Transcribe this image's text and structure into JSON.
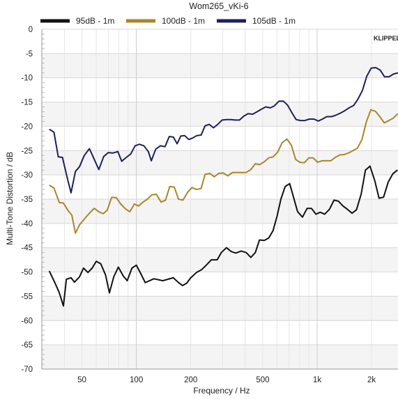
{
  "chart_data": {
    "type": "line",
    "title": "Wom265_vKi-6",
    "xlabel": "Frequency / Hz",
    "ylabel": "Multi-Tone Distortion / dB",
    "x_scale": "log",
    "xlim": [
      30,
      2800
    ],
    "ylim": [
      -70,
      0
    ],
    "grid": true,
    "legend_position": "top",
    "x_ticks": [
      {
        "value": 50,
        "label": "50"
      },
      {
        "value": 100,
        "label": "100"
      },
      {
        "value": 200,
        "label": "200"
      },
      {
        "value": 500,
        "label": "500"
      },
      {
        "value": 1000,
        "label": "1k"
      },
      {
        "value": 2000,
        "label": "2k"
      }
    ],
    "y_ticks": [
      0,
      -5,
      -10,
      -15,
      -20,
      -25,
      -30,
      -35,
      -40,
      -45,
      -50,
      -55,
      -60,
      -65,
      -70
    ],
    "series": [
      {
        "name": "95dB - 1m",
        "color": "#111111",
        "points": [
          [
            33,
            -49.8
          ],
          [
            35.5,
            -52.3
          ],
          [
            37.5,
            -54.3
          ],
          [
            39.5,
            -57
          ],
          [
            41,
            -51.5
          ],
          [
            43.5,
            -51.2
          ],
          [
            45.5,
            -52.1
          ],
          [
            48.5,
            -51
          ],
          [
            51,
            -49.2
          ],
          [
            54,
            -50.1
          ],
          [
            57,
            -49.2
          ],
          [
            60,
            -47.8
          ],
          [
            63.5,
            -48.3
          ],
          [
            67.5,
            -50.6
          ],
          [
            71,
            -54.3
          ],
          [
            75,
            -51
          ],
          [
            79.5,
            -49
          ],
          [
            84.5,
            -50.8
          ],
          [
            89,
            -51.8
          ],
          [
            94.5,
            -49.2
          ],
          [
            100,
            -48.6
          ],
          [
            106,
            -50.4
          ],
          [
            112,
            -52.2
          ],
          [
            125,
            -51.4
          ],
          [
            140,
            -51.8
          ],
          [
            160,
            -51.2
          ],
          [
            170,
            -52.1
          ],
          [
            180,
            -52.8
          ],
          [
            190,
            -52.3
          ],
          [
            200,
            -51.2
          ],
          [
            215,
            -50.1
          ],
          [
            230,
            -49.5
          ],
          [
            245,
            -48.5
          ],
          [
            260,
            -47.5
          ],
          [
            280,
            -47.5
          ],
          [
            295,
            -46
          ],
          [
            315,
            -45
          ],
          [
            335,
            -45.8
          ],
          [
            355,
            -46.1
          ],
          [
            380,
            -45.7
          ],
          [
            405,
            -46
          ],
          [
            430,
            -47
          ],
          [
            455,
            -46
          ],
          [
            480,
            -43.4
          ],
          [
            510,
            -43.5
          ],
          [
            540,
            -43
          ],
          [
            570,
            -41.5
          ],
          [
            600,
            -38.5
          ],
          [
            630,
            -35
          ],
          [
            665,
            -32.4
          ],
          [
            705,
            -31.8
          ],
          [
            740,
            -34.6
          ],
          [
            780,
            -37.6
          ],
          [
            830,
            -38.7
          ],
          [
            880,
            -36.9
          ],
          [
            930,
            -36.9
          ],
          [
            985,
            -38.1
          ],
          [
            1040,
            -37.7
          ],
          [
            1100,
            -38.1
          ],
          [
            1170,
            -37.1
          ],
          [
            1240,
            -35.2
          ],
          [
            1310,
            -35.4
          ],
          [
            1390,
            -36.4
          ],
          [
            1470,
            -37.1
          ],
          [
            1560,
            -37.9
          ],
          [
            1650,
            -37.2
          ],
          [
            1750,
            -34
          ],
          [
            1850,
            -29
          ],
          [
            1960,
            -28.2
          ],
          [
            2080,
            -31.1
          ],
          [
            2200,
            -34.8
          ],
          [
            2330,
            -34.6
          ],
          [
            2470,
            -31.5
          ],
          [
            2620,
            -29.8
          ],
          [
            2780,
            -29
          ]
        ]
      },
      {
        "name": "100dB - 1m",
        "color": "#a8862a",
        "points": [
          [
            33,
            -32.1
          ],
          [
            35,
            -32.7
          ],
          [
            37.5,
            -35.7
          ],
          [
            39.5,
            -35.8
          ],
          [
            42,
            -37.4
          ],
          [
            44,
            -38.3
          ],
          [
            46,
            -42
          ],
          [
            48.5,
            -40.3
          ],
          [
            51.5,
            -39.1
          ],
          [
            55,
            -37.9
          ],
          [
            58.5,
            -36.9
          ],
          [
            62,
            -37.6
          ],
          [
            65.5,
            -38
          ],
          [
            69,
            -37.3
          ],
          [
            73,
            -34.6
          ],
          [
            77.5,
            -34.7
          ],
          [
            82,
            -36
          ],
          [
            87,
            -37
          ],
          [
            92,
            -37.6
          ],
          [
            97.5,
            -36
          ],
          [
            103,
            -36.4
          ],
          [
            109,
            -35.6
          ],
          [
            115,
            -35
          ],
          [
            122,
            -34.1
          ],
          [
            129,
            -34
          ],
          [
            137,
            -35.6
          ],
          [
            145,
            -35.2
          ],
          [
            153,
            -32.4
          ],
          [
            162,
            -32.5
          ],
          [
            171,
            -35
          ],
          [
            181,
            -35.2
          ],
          [
            192,
            -33.6
          ],
          [
            203,
            -32.6
          ],
          [
            215,
            -33
          ],
          [
            228,
            -32.8
          ],
          [
            240,
            -29.9
          ],
          [
            255,
            -29.7
          ],
          [
            270,
            -30.4
          ],
          [
            285,
            -29.7
          ],
          [
            302,
            -29.6
          ],
          [
            320,
            -30.2
          ],
          [
            340,
            -29.5
          ],
          [
            360,
            -29.5
          ],
          [
            382,
            -29.5
          ],
          [
            405,
            -29.5
          ],
          [
            430,
            -28.9
          ],
          [
            455,
            -27.7
          ],
          [
            480,
            -27.9
          ],
          [
            510,
            -27.3
          ],
          [
            540,
            -26.5
          ],
          [
            570,
            -26.3
          ],
          [
            605,
            -25.3
          ],
          [
            640,
            -23.4
          ],
          [
            680,
            -22.6
          ],
          [
            720,
            -23.9
          ],
          [
            760,
            -26.8
          ],
          [
            800,
            -27.4
          ],
          [
            850,
            -27.5
          ],
          [
            900,
            -26.5
          ],
          [
            950,
            -26.5
          ],
          [
            1005,
            -27.4
          ],
          [
            1065,
            -27.1
          ],
          [
            1125,
            -27.1
          ],
          [
            1190,
            -27.1
          ],
          [
            1260,
            -26.4
          ],
          [
            1330,
            -25.9
          ],
          [
            1410,
            -25.8
          ],
          [
            1490,
            -25.5
          ],
          [
            1580,
            -25
          ],
          [
            1670,
            -24.5
          ],
          [
            1770,
            -22.7
          ],
          [
            1870,
            -19.1
          ],
          [
            1980,
            -16.6
          ],
          [
            2100,
            -16.9
          ],
          [
            2220,
            -18
          ],
          [
            2350,
            -19.3
          ],
          [
            2490,
            -18.8
          ],
          [
            2640,
            -18.3
          ],
          [
            2790,
            -17.4
          ]
        ]
      },
      {
        "name": "105dB - 1m",
        "color": "#1c1f5e",
        "points": [
          [
            33,
            -20.6
          ],
          [
            35,
            -21.2
          ],
          [
            37,
            -26.3
          ],
          [
            39,
            -26.4
          ],
          [
            41.5,
            -30.7
          ],
          [
            43.5,
            -33.7
          ],
          [
            46,
            -29.3
          ],
          [
            48.5,
            -28.3
          ],
          [
            51.5,
            -26
          ],
          [
            55,
            -24.6
          ],
          [
            58.5,
            -26.8
          ],
          [
            62,
            -28.9
          ],
          [
            66,
            -26.2
          ],
          [
            70,
            -25.4
          ],
          [
            74,
            -25.5
          ],
          [
            79,
            -25.2
          ],
          [
            83,
            -27.2
          ],
          [
            88,
            -26.4
          ],
          [
            93,
            -25.7
          ],
          [
            98.5,
            -24
          ],
          [
            104,
            -23.7
          ],
          [
            110,
            -24
          ],
          [
            116.5,
            -25.2
          ],
          [
            121,
            -27.1
          ],
          [
            128,
            -24.7
          ],
          [
            136,
            -24
          ],
          [
            144,
            -24.2
          ],
          [
            152,
            -22.1
          ],
          [
            160,
            -22.2
          ],
          [
            168,
            -23.6
          ],
          [
            176,
            -22
          ],
          [
            185,
            -21.9
          ],
          [
            195,
            -22.7
          ],
          [
            205,
            -22.4
          ],
          [
            216,
            -21.9
          ],
          [
            228,
            -21.8
          ],
          [
            240,
            -19.9
          ],
          [
            253,
            -19.6
          ],
          [
            267,
            -20.3
          ],
          [
            282,
            -19.6
          ],
          [
            298,
            -18.7
          ],
          [
            315,
            -18.6
          ],
          [
            333,
            -18.6
          ],
          [
            352,
            -18.7
          ],
          [
            372,
            -18.7
          ],
          [
            393,
            -17.9
          ],
          [
            415,
            -17.4
          ],
          [
            440,
            -17.5
          ],
          [
            465,
            -17
          ],
          [
            490,
            -16.5
          ],
          [
            520,
            -16
          ],
          [
            550,
            -16.2
          ],
          [
            580,
            -15.8
          ],
          [
            615,
            -14.8
          ],
          [
            650,
            -14.8
          ],
          [
            685,
            -15.6
          ],
          [
            725,
            -17.2
          ],
          [
            765,
            -18.6
          ],
          [
            810,
            -18.8
          ],
          [
            855,
            -18.8
          ],
          [
            905,
            -18.5
          ],
          [
            960,
            -18.5
          ],
          [
            1015,
            -18.9
          ],
          [
            1070,
            -18.5
          ],
          [
            1130,
            -18
          ],
          [
            1200,
            -18
          ],
          [
            1270,
            -17.7
          ],
          [
            1340,
            -17.3
          ],
          [
            1420,
            -16.8
          ],
          [
            1500,
            -16.2
          ],
          [
            1590,
            -15.7
          ],
          [
            1680,
            -14.4
          ],
          [
            1780,
            -12.6
          ],
          [
            1880,
            -9.7
          ],
          [
            1990,
            -8
          ],
          [
            2110,
            -7.9
          ],
          [
            2230,
            -8.4
          ],
          [
            2360,
            -9.8
          ],
          [
            2500,
            -9.8
          ],
          [
            2650,
            -9.2
          ],
          [
            2800,
            -9
          ]
        ]
      }
    ]
  },
  "logo": {
    "text": "KLIPPEL",
    "color": "#3a8fd0"
  }
}
